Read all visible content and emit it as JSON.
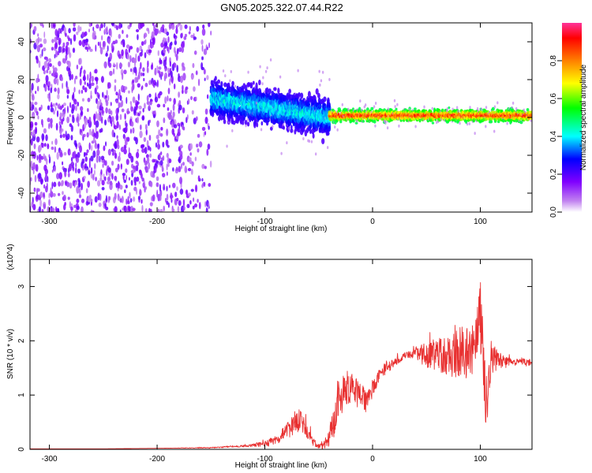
{
  "title": "GN05.2025.322.07.44.R22",
  "chart_data": [
    {
      "type": "heatmap",
      "title": "GN05.2025.322.07.44.R22",
      "xlabel": "Height of straight line (km)",
      "ylabel": "Frequency (Hz)",
      "xlim": [
        -318,
        148
      ],
      "ylim": [
        -50,
        50
      ],
      "x_ticks": [
        -300,
        -200,
        -100,
        0,
        100
      ],
      "y_ticks": [
        -40,
        -20,
        0,
        20,
        40
      ],
      "x_tick_labels": [
        "-300",
        "-200",
        "-100",
        "0",
        "100"
      ],
      "y_tick_labels": [
        "-40",
        "-20",
        "0",
        "20",
        "40"
      ],
      "grid": false,
      "colorbar": {
        "label": "Normalized spectral amplitude",
        "range": [
          0,
          1
        ],
        "ticks": [
          0.0,
          0.2,
          0.4,
          0.6,
          0.8
        ],
        "tick_labels": [
          "0.0",
          "0.2",
          "0.4",
          "0.6",
          "0.8"
        ],
        "colors": [
          "#ffffff",
          "#c080f0",
          "#8000ff",
          "#0000ff",
          "#00ffff",
          "#00ff00",
          "#ffff00",
          "#ff8000",
          "#ff0000",
          "#ff3399"
        ]
      },
      "regions": [
        {
          "x": [
            -318,
            -150
          ],
          "frequency_spread_hz": [
            -50,
            50
          ],
          "amplitude_range": [
            0.05,
            0.2
          ],
          "description_colour": "purple"
        },
        {
          "x": [
            -150,
            -40
          ],
          "frequency_center_hz": [
            10,
            0
          ],
          "frequency_spread_hz": 10,
          "amplitude_range": [
            0.2,
            0.45
          ]
        },
        {
          "x": [
            -40,
            148
          ],
          "frequency_center_hz": 1,
          "frequency_spread_hz": 3,
          "amplitude_range": [
            0.5,
            0.95
          ]
        }
      ]
    },
    {
      "type": "line",
      "xlabel": "Height of straight line (km)",
      "ylabel": "SNR (10 * v/v)",
      "y_multiplier": "(x10^4)",
      "xlim": [
        -318,
        148
      ],
      "ylim": [
        0,
        3.5
      ],
      "x_ticks": [
        -300,
        -200,
        -100,
        0,
        100
      ],
      "y_ticks": [
        0,
        1,
        2,
        3
      ],
      "x_tick_labels": [
        "-300",
        "-200",
        "-100",
        "0",
        "100"
      ],
      "y_tick_labels": [
        "0",
        "1",
        "2",
        "3"
      ],
      "grid": false,
      "series": [
        {
          "color": "#e83030",
          "x": [
            -318,
            -250,
            -200,
            -150,
            -120,
            -110,
            -100,
            -90,
            -80,
            -75,
            -70,
            -65,
            -60,
            -55,
            -50,
            -45,
            -40,
            -35,
            -30,
            -25,
            -20,
            -15,
            -10,
            -5,
            0,
            5,
            10,
            20,
            30,
            40,
            50,
            60,
            70,
            80,
            90,
            95,
            100,
            103,
            105,
            110,
            120,
            130,
            140,
            148
          ],
          "y": [
            0.01,
            0.01,
            0.02,
            0.03,
            0.06,
            0.08,
            0.1,
            0.18,
            0.32,
            0.45,
            0.55,
            0.5,
            0.3,
            0.12,
            0.05,
            0.08,
            0.25,
            0.55,
            0.9,
            1.1,
            1.15,
            1.05,
            0.95,
            0.9,
            1.15,
            1.3,
            1.45,
            1.6,
            1.72,
            1.78,
            1.72,
            1.75,
            1.7,
            1.75,
            1.8,
            1.9,
            2.6,
            1.5,
            0.5,
            1.7,
            1.62,
            1.6,
            1.62,
            1.6
          ],
          "spread": [
            0,
            0,
            0,
            0.01,
            0.02,
            0.03,
            0.05,
            0.08,
            0.15,
            0.2,
            0.25,
            0.2,
            0.15,
            0.06,
            0.04,
            0.08,
            0.2,
            0.3,
            0.35,
            0.35,
            0.3,
            0.3,
            0.25,
            0.22,
            0.2,
            0.15,
            0.12,
            0.08,
            0.06,
            0.1,
            0.25,
            0.3,
            0.35,
            0.45,
            0.5,
            0.55,
            0.8,
            0.8,
            0.5,
            0.3,
            0.12,
            0.06,
            0.06,
            0.06
          ]
        }
      ]
    }
  ]
}
